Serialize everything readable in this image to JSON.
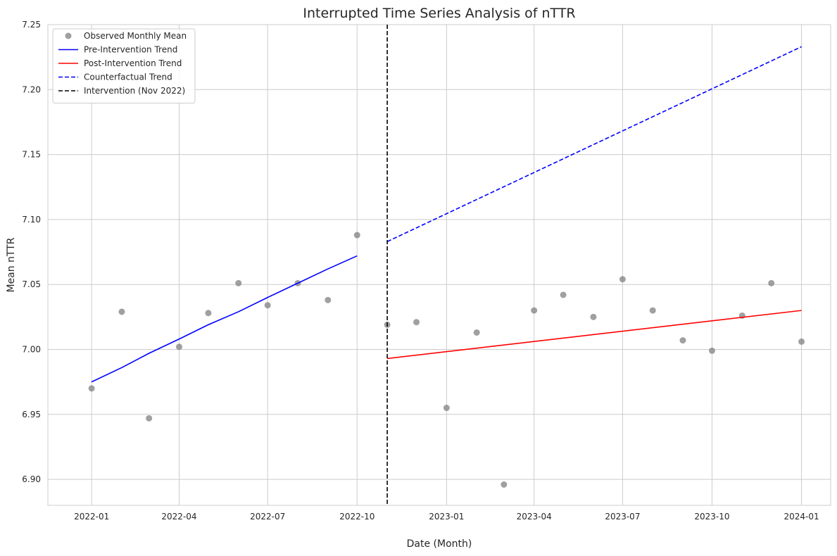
{
  "chart_data": {
    "type": "line",
    "title": "Interrupted Time Series Analysis of nTTR",
    "xlabel": "Date (Month)",
    "ylabel": "Mean nTTR",
    "ylim": [
      6.88,
      7.25
    ],
    "xlim": [
      "2021-11-17",
      "2024-01-31"
    ],
    "grid": true,
    "legend_position": "top-left",
    "x_ticks": [
      "2022-01",
      "2022-04",
      "2022-07",
      "2022-10",
      "2023-01",
      "2023-04",
      "2023-07",
      "2023-10",
      "2024-01"
    ],
    "y_ticks": [
      "6.90",
      "6.95",
      "7.00",
      "7.05",
      "7.10",
      "7.15",
      "7.20",
      "7.25"
    ],
    "series": [
      {
        "name": "Observed Monthly Mean",
        "kind": "scatter",
        "color": "#808080",
        "x": [
          "2022-01-01",
          "2022-02-01",
          "2022-03-01",
          "2022-04-01",
          "2022-05-01",
          "2022-06-01",
          "2022-07-01",
          "2022-08-01",
          "2022-09-01",
          "2022-10-01",
          "2022-11-01",
          "2022-12-01",
          "2023-01-01",
          "2023-02-01",
          "2023-03-01",
          "2023-04-01",
          "2023-05-01",
          "2023-06-01",
          "2023-07-01",
          "2023-08-01",
          "2023-09-01",
          "2023-10-01",
          "2023-11-01",
          "2023-12-01",
          "2024-01-01"
        ],
        "y": [
          6.97,
          7.029,
          6.947,
          7.002,
          7.028,
          7.051,
          7.034,
          7.051,
          7.038,
          7.088,
          7.019,
          7.021,
          6.955,
          7.013,
          6.896,
          7.03,
          7.042,
          7.025,
          7.054,
          7.03,
          7.007,
          6.999,
          7.026,
          7.051,
          7.006
        ]
      },
      {
        "name": "Pre-Intervention Trend",
        "kind": "line",
        "color": "#0000ff",
        "dash": "solid",
        "x": [
          "2022-01-01",
          "2022-02-01",
          "2022-03-01",
          "2022-04-01",
          "2022-05-01",
          "2022-06-01",
          "2022-07-01",
          "2022-08-01",
          "2022-09-01",
          "2022-10-01"
        ],
        "y": [
          6.975,
          6.986,
          6.997,
          7.008,
          7.019,
          7.029,
          7.04,
          7.051,
          7.062,
          7.072
        ]
      },
      {
        "name": "Post-Intervention Trend",
        "kind": "line",
        "color": "#ff0000",
        "dash": "solid",
        "x": [
          "2022-11-01",
          "2024-01-01"
        ],
        "y": [
          6.993,
          7.03
        ]
      },
      {
        "name": "Counterfactual Trend",
        "kind": "line",
        "color": "#0000ff",
        "dash": "dashed",
        "x": [
          "2022-11-01",
          "2024-01-01"
        ],
        "y": [
          7.083,
          7.233
        ]
      }
    ],
    "vlines": [
      {
        "name": "Intervention (Nov 2022)",
        "x": "2022-11-01",
        "color": "#000000",
        "dash": "dashed"
      }
    ],
    "legend": [
      {
        "label": "Observed Monthly Mean",
        "kind": "marker",
        "color": "#808080"
      },
      {
        "label": "Pre-Intervention Trend",
        "kind": "line",
        "color": "#0000ff",
        "dash": "solid"
      },
      {
        "label": "Post-Intervention Trend",
        "kind": "line",
        "color": "#ff0000",
        "dash": "solid"
      },
      {
        "label": "Counterfactual Trend",
        "kind": "line",
        "color": "#0000ff",
        "dash": "dashed"
      },
      {
        "label": "Intervention (Nov 2022)",
        "kind": "line",
        "color": "#000000",
        "dash": "dashed"
      }
    ]
  }
}
